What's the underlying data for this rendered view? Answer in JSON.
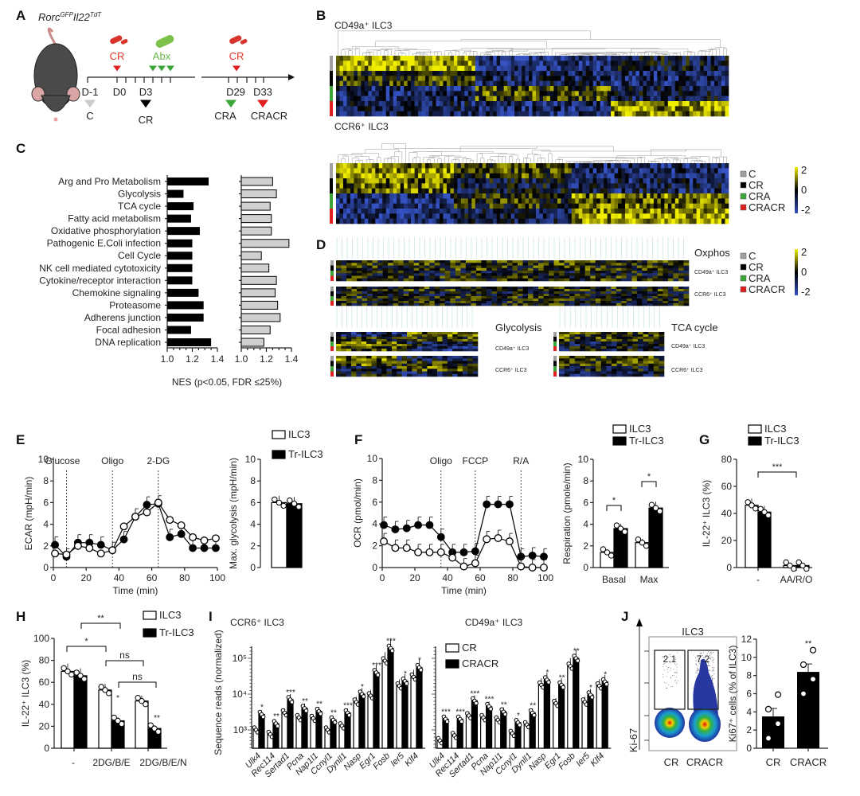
{
  "panels": [
    "A",
    "B",
    "C",
    "D",
    "E",
    "F",
    "G",
    "H",
    "I",
    "J"
  ],
  "colors": {
    "C": "#a0a0a0",
    "CR": "#000000",
    "CRA": "#3aa637",
    "CRACR": "#e02020",
    "heat_low": "#3553c4",
    "heat_mid": "#000000",
    "heat_high": "#f2ee00",
    "red_text": "#e8352b",
    "green_text": "#66b84a"
  },
  "panelA": {
    "strain": [
      "Rorc",
      "GFP",
      "Il22",
      "TdT"
    ],
    "treatments": {
      "cr1": "CR",
      "abx": "Abx",
      "cr2": "CR"
    },
    "days": [
      "D-1",
      "D0",
      "D3",
      "D29",
      "D33"
    ],
    "groups": [
      "C",
      "CR",
      "CRA",
      "CRACR"
    ],
    "icons": [
      "mouse-illustration",
      "bacteria-icon",
      "antibiotic-pill-icon"
    ]
  },
  "panelB": {
    "titles": [
      "CD49a⁺ ILC3",
      "CCR6⁺ ILC3"
    ],
    "legend": [
      "C",
      "CR",
      "CRA",
      "CRACR"
    ],
    "colorbar": [
      "2",
      "0",
      "-2"
    ]
  },
  "panelD": {
    "sets": [
      "Oxphos",
      "Glycolysis",
      "TCA cycle"
    ],
    "rows": [
      "CD49a⁺ ILC3",
      "CCR6⁺ ILC3"
    ],
    "legend": [
      "C",
      "CR",
      "CRA",
      "CRACR"
    ],
    "colorbar": [
      "2",
      "0",
      "-2"
    ]
  },
  "chart_data": [
    {
      "panel": "C",
      "type": "bar",
      "orientation": "horizontal",
      "categories": [
        "Arg and Pro Metabolism",
        "Glycolysis",
        "TCA cycle",
        "Fatty acid metabolism",
        "Oxidative phosphorylation",
        "Pathogenic E.Coli infection",
        "Cell Cycle",
        "NK cell mediated cytotoxicity",
        "Cytokine/receptor interaction",
        "Chemokine signaling",
        "Proteasome",
        "Adherens junction",
        "Focal adhesion",
        "DNA replication"
      ],
      "series": [
        {
          "values": [
            1.33,
            1.13,
            1.21,
            1.19,
            1.26,
            1.2,
            1.2,
            1.2,
            1.2,
            1.25,
            1.29,
            1.29,
            1.19,
            1.35
          ],
          "color": "#000000"
        },
        {
          "values": [
            1.25,
            1.28,
            1.23,
            1.24,
            1.24,
            1.38,
            1.16,
            1.22,
            1.28,
            1.27,
            1.29,
            1.31,
            1.23,
            1.18
          ],
          "color": "#d0d0d0"
        }
      ],
      "xticks": [
        "1.0",
        "1.2",
        "1.4"
      ],
      "xlim": [
        1.0,
        1.4
      ],
      "xlabel": "NES (p<0.05, FDR ≤25%)"
    },
    {
      "panel": "E",
      "type": "line",
      "x": [
        1,
        8,
        15,
        22,
        29,
        36,
        43,
        50,
        57,
        64,
        71,
        78,
        85,
        92,
        99
      ],
      "series": [
        {
          "name": "ILC3",
          "values": [
            1.3,
            1.2,
            2.0,
            1.8,
            1.3,
            1.6,
            3.8,
            4.7,
            5.1,
            6.0,
            4.4,
            3.9,
            2.8,
            2.5,
            2.7
          ]
        },
        {
          "name": "Tr-ILC3",
          "values": [
            2.1,
            1.0,
            2.3,
            2.3,
            2.1,
            1.6,
            2.6,
            4.7,
            5.8,
            5.9,
            2.8,
            3.1,
            1.8,
            1.8,
            1.8
          ]
        }
      ],
      "injections": [
        {
          "label": "Glucose",
          "t": 8
        },
        {
          "label": "Oligo",
          "t": 36
        },
        {
          "label": "2-DG",
          "t": 64
        }
      ],
      "xticks": [
        "0",
        "20",
        "40",
        "60",
        "80",
        "100"
      ],
      "yticks": [
        "0",
        "2",
        "4",
        "6",
        "8",
        "10"
      ],
      "xlim": [
        0,
        100
      ],
      "ylim": [
        0,
        10
      ],
      "xlabel": "Time (min)",
      "ylabel": "ECAR (mpH/min)"
    },
    {
      "panel": "E",
      "type": "bar",
      "categories": [
        ""
      ],
      "series": [
        {
          "name": "ILC3",
          "values": [
            6.0
          ]
        },
        {
          "name": "Tr-ILC3",
          "values": [
            5.9
          ]
        }
      ],
      "yticks": [
        "0",
        "2",
        "4",
        "6",
        "8",
        "10"
      ],
      "ylim": [
        0,
        10
      ],
      "ylabel": "Max. glycolysis (mpH/min)"
    },
    {
      "panel": "F",
      "type": "line",
      "x": [
        1,
        8,
        15,
        22,
        29,
        36,
        43,
        50,
        57,
        64,
        71,
        78,
        85,
        92,
        99
      ],
      "series": [
        {
          "name": "ILC3",
          "values": [
            2.4,
            1.8,
            1.8,
            1.4,
            1.4,
            1.4,
            0.9,
            0.1,
            0.4,
            2.6,
            2.7,
            2.4,
            0.1,
            0.0,
            0.0
          ]
        },
        {
          "name": "Tr-ILC3",
          "values": [
            3.9,
            3.5,
            3.6,
            3.9,
            3.9,
            2.8,
            1.4,
            1.4,
            1.5,
            5.8,
            5.8,
            5.8,
            1.0,
            1.1,
            1.0
          ]
        }
      ],
      "injections": [
        {
          "label": "Oligo",
          "t": 36
        },
        {
          "label": "FCCP",
          "t": 57
        },
        {
          "label": "R/A",
          "t": 85
        }
      ],
      "xticks": [
        "0",
        "20",
        "40",
        "60",
        "80",
        "100"
      ],
      "yticks": [
        "0",
        "2",
        "4",
        "6",
        "8",
        "10"
      ],
      "xlim": [
        0,
        100
      ],
      "ylim": [
        0,
        10
      ],
      "xlabel": "Time (min)",
      "ylabel": "OCR (pmol/min)"
    },
    {
      "panel": "F",
      "type": "bar",
      "categories": [
        "Basal",
        "Max"
      ],
      "series": [
        {
          "name": "ILC3",
          "values": [
            1.4,
            2.3
          ]
        },
        {
          "name": "Tr-ILC3",
          "values": [
            3.6,
            5.5
          ]
        }
      ],
      "annotations": [
        "*",
        "*"
      ],
      "yticks": [
        "0",
        "2",
        "4",
        "6",
        "8",
        "10"
      ],
      "ylim": [
        0,
        10
      ],
      "ylabel": "Respiration (pmole/min)"
    },
    {
      "panel": "G",
      "type": "bar",
      "categories": [
        "-",
        "AA/R/O"
      ],
      "series": [
        {
          "name": "ILC3",
          "values": [
            46,
            1.5
          ]
        },
        {
          "name": "Tr-ILC3",
          "values": [
            41,
            1.5
          ]
        }
      ],
      "annotations": [
        "***"
      ],
      "yticks": [
        "0",
        "20",
        "40",
        "60",
        "80"
      ],
      "ylim": [
        0,
        80
      ],
      "ylabel": "IL-22⁺ ILC3 (%)"
    },
    {
      "panel": "H",
      "type": "bar",
      "categories": [
        "-",
        "2DG/B/E",
        "2DG/B/E/N"
      ],
      "series": [
        {
          "name": "ILC3",
          "values": [
            70,
            53,
            43
          ]
        },
        {
          "name": "Tr-ILC3",
          "values": [
            66,
            25,
            18
          ]
        }
      ],
      "annotations": [
        "**",
        "*",
        "ns",
        "ns",
        "*",
        "**"
      ],
      "yticks": [
        "0",
        "20",
        "40",
        "60",
        "80",
        "100"
      ],
      "ylim": [
        0,
        100
      ],
      "ylabel": "IL-22⁺ ILC3 (%)"
    },
    {
      "panel": "I",
      "type": "bar",
      "title": "CCR6⁺ ILC3",
      "yscale": "log",
      "categories": [
        "Ulk4",
        "Rec114",
        "Sertad1",
        "Pcna",
        "Nap1l1",
        "Ccnyl1",
        "Dynll1",
        "Nasp",
        "Egr1",
        "Fosb",
        "Ier5",
        "Klf4"
      ],
      "series": [
        {
          "name": "CR",
          "values": [
            1000,
            750,
            3000,
            2200,
            2100,
            1000,
            1300,
            6000,
            9000,
            85000,
            17000,
            30000
          ]
        },
        {
          "name": "CRACR",
          "values": [
            2700,
            1500,
            7000,
            4000,
            3300,
            1900,
            3000,
            10000,
            40000,
            190000,
            23000,
            55000
          ]
        }
      ],
      "annotations": [
        "*",
        "**",
        "***",
        "**",
        "**",
        "**",
        "***",
        "*",
        "***",
        "***",
        "*",
        "*"
      ],
      "yticks": [
        "10³",
        "10⁴",
        "10⁵"
      ],
      "ylabel": "Sequence reads (normalized)"
    },
    {
      "panel": "I",
      "type": "bar",
      "title": "CD49a⁺ ILC3",
      "yscale": "log",
      "categories": [
        "Ulk4",
        "Rec114",
        "Sertad1",
        "Pcna",
        "Nap1l1",
        "Ccnyl1",
        "Dynll1",
        "Nasp",
        "Egr1",
        "Fosb",
        "Ier5",
        "Klf4"
      ],
      "series": [
        {
          "name": "CR",
          "values": [
            500,
            700,
            2500,
            2200,
            1900,
            800,
            1400,
            18000,
            5500,
            60000,
            6000,
            17000
          ]
        },
        {
          "name": "CRACR",
          "values": [
            2000,
            2000,
            6500,
            4500,
            3200,
            1600,
            3000,
            25000,
            18000,
            100000,
            9500,
            22000
          ]
        }
      ],
      "annotations": [
        "***",
        "***",
        "***",
        "***",
        "**",
        "*",
        "**",
        "*",
        "**",
        "**",
        "*",
        "*"
      ]
    },
    {
      "panel": "J",
      "type": "bar",
      "title": "ILC3",
      "categories": [
        "CR",
        "CRACR"
      ],
      "values": [
        3.5,
        8.4
      ],
      "annotations": [
        "**"
      ],
      "gates": [
        "2.1",
        "7.2"
      ],
      "flow_ylabel": "Ki-67",
      "yticks": [
        "0",
        "2",
        "4",
        "6",
        "8",
        "10",
        "12"
      ],
      "ylim": [
        0,
        12
      ],
      "ylabel": "Ki67⁺ cells (% of ILC3)"
    }
  ]
}
